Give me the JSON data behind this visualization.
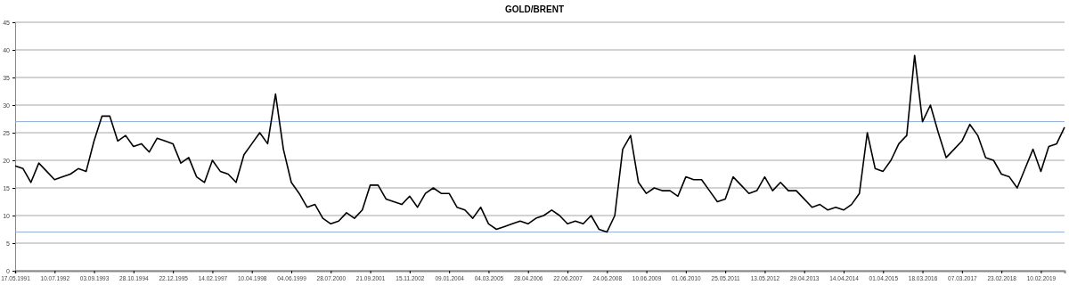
{
  "chart_data": {
    "type": "line",
    "title": "GOLD/BRENT",
    "categories": [
      "17.05.1991",
      null,
      null,
      null,
      null,
      "10.07.1992",
      null,
      null,
      null,
      null,
      "03.09.1993",
      null,
      null,
      null,
      null,
      "28.10.1994",
      null,
      null,
      null,
      null,
      "22.12.1995",
      null,
      null,
      null,
      null,
      "14.02.1997",
      null,
      null,
      null,
      null,
      "10.04.1998",
      null,
      null,
      null,
      null,
      "04.06.1999",
      null,
      null,
      null,
      null,
      "28.07.2000",
      null,
      null,
      null,
      null,
      "21.09.2001",
      null,
      null,
      null,
      null,
      "15.11.2002",
      null,
      null,
      null,
      null,
      "09.01.2004",
      null,
      null,
      null,
      null,
      "04.03.2005",
      null,
      null,
      null,
      null,
      "28.04.2006",
      null,
      null,
      null,
      null,
      "22.06.2007",
      null,
      null,
      null,
      null,
      "24.06.2008",
      null,
      null,
      null,
      null,
      "10.06.2009",
      null,
      null,
      null,
      null,
      "01.06.2010",
      null,
      null,
      null,
      null,
      "25.05.2011",
      null,
      null,
      null,
      null,
      "13.05.2012",
      null,
      null,
      null,
      null,
      "29.04.2013",
      null,
      null,
      null,
      null,
      "14.04.2014",
      null,
      null,
      null,
      null,
      "01.04.2015",
      null,
      null,
      null,
      null,
      "18.03.2016",
      null,
      null,
      null,
      null,
      "07.03.2017",
      null,
      null,
      null,
      null,
      "23.02.2018",
      null,
      null,
      null,
      null,
      "10.02.2019",
      null,
      null,
      null
    ],
    "series": [
      {
        "color": "#000000",
        "values": [
          19,
          18.5,
          16,
          19.5,
          18,
          16.5,
          17,
          17.5,
          18.5,
          18,
          23.5,
          28,
          28,
          23.5,
          24.5,
          22.5,
          23,
          21.5,
          24,
          23.5,
          23,
          19.5,
          20.5,
          17,
          16,
          20,
          18,
          17.5,
          16,
          21,
          23,
          25,
          23,
          32,
          22,
          16,
          14,
          11.5,
          12,
          9.5,
          8.5,
          9,
          10.5,
          9.5,
          11,
          15.5,
          15.5,
          13,
          12.5,
          12,
          13.5,
          11.5,
          14,
          15,
          14,
          14,
          11.5,
          11,
          9.5,
          11.5,
          8.5,
          7.5,
          8,
          8.5,
          9,
          8.5,
          9.5,
          10,
          11,
          10,
          8.5,
          9,
          8.5,
          10,
          7.5,
          7,
          10,
          22,
          24.5,
          16,
          14,
          15,
          14.5,
          14.5,
          13.5,
          17,
          16.5,
          16.5,
          14.5,
          12.5,
          13,
          17,
          15.5,
          14,
          14.5,
          17,
          14.5,
          16,
          14.5,
          14.5,
          13,
          11.5,
          12,
          11,
          11.5,
          11,
          12,
          14,
          25,
          18.5,
          18,
          20,
          23,
          24.5,
          39,
          27,
          30,
          25,
          20.5,
          22,
          23.5,
          26.5,
          24.5,
          20.5,
          20,
          17.5,
          17,
          15,
          18.5,
          22,
          18,
          22.5,
          23,
          26
        ]
      }
    ],
    "ylim": [
      0,
      45
    ],
    "yticks": [
      0,
      5,
      10,
      15,
      20,
      25,
      30,
      35,
      40,
      45
    ],
    "grid": "y",
    "ref_lines": [
      {
        "axis": "y",
        "value": 27,
        "color": "#8eaed6"
      },
      {
        "axis": "y",
        "value": 7,
        "color": "#8eaed6"
      }
    ]
  }
}
